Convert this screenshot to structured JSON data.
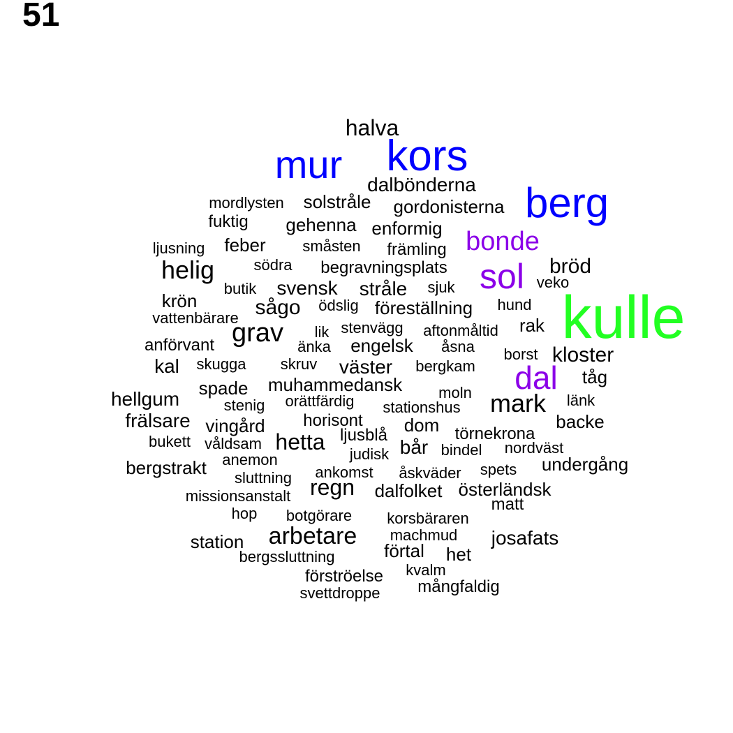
{
  "page_number": "51",
  "colors": {
    "default": "#000000",
    "blue": "#0000ff",
    "purple": "#8b00e8",
    "green": "#22ff22"
  },
  "words": [
    {
      "text": "halva",
      "color": "default"
    },
    {
      "text": "mur",
      "color": "blue"
    },
    {
      "text": "kors",
      "color": "blue"
    },
    {
      "text": "dalbönderna",
      "color": "default"
    },
    {
      "text": "berg",
      "color": "blue"
    },
    {
      "text": "mordlysten",
      "color": "default"
    },
    {
      "text": "solstråle",
      "color": "default"
    },
    {
      "text": "gordonisterna",
      "color": "default"
    },
    {
      "text": "fuktig",
      "color": "default"
    },
    {
      "text": "gehenna",
      "color": "default"
    },
    {
      "text": "enformig",
      "color": "default"
    },
    {
      "text": "bonde",
      "color": "purple"
    },
    {
      "text": "ljusning",
      "color": "default"
    },
    {
      "text": "feber",
      "color": "default"
    },
    {
      "text": "småsten",
      "color": "default"
    },
    {
      "text": "främling",
      "color": "default"
    },
    {
      "text": "helig",
      "color": "default"
    },
    {
      "text": "södra",
      "color": "default"
    },
    {
      "text": "begravningsplats",
      "color": "default"
    },
    {
      "text": "sol",
      "color": "purple"
    },
    {
      "text": "bröd",
      "color": "default"
    },
    {
      "text": "butik",
      "color": "default"
    },
    {
      "text": "svensk",
      "color": "default"
    },
    {
      "text": "stråle",
      "color": "default"
    },
    {
      "text": "sjuk",
      "color": "default"
    },
    {
      "text": "veko",
      "color": "default"
    },
    {
      "text": "krön",
      "color": "default"
    },
    {
      "text": "sågo",
      "color": "default"
    },
    {
      "text": "ödslig",
      "color": "default"
    },
    {
      "text": "föreställning",
      "color": "default"
    },
    {
      "text": "hund",
      "color": "default"
    },
    {
      "text": "kulle",
      "color": "green"
    },
    {
      "text": "vattenbärare",
      "color": "default"
    },
    {
      "text": "grav",
      "color": "default"
    },
    {
      "text": "lik",
      "color": "default"
    },
    {
      "text": "stenvägg",
      "color": "default"
    },
    {
      "text": "aftonmåltid",
      "color": "default"
    },
    {
      "text": "rak",
      "color": "default"
    },
    {
      "text": "anförvant",
      "color": "default"
    },
    {
      "text": "änka",
      "color": "default"
    },
    {
      "text": "engelsk",
      "color": "default"
    },
    {
      "text": "åsna",
      "color": "default"
    },
    {
      "text": "borst",
      "color": "default"
    },
    {
      "text": "kloster",
      "color": "default"
    },
    {
      "text": "kal",
      "color": "default"
    },
    {
      "text": "skugga",
      "color": "default"
    },
    {
      "text": "skruv",
      "color": "default"
    },
    {
      "text": "väster",
      "color": "default"
    },
    {
      "text": "bergkam",
      "color": "default"
    },
    {
      "text": "dal",
      "color": "purple"
    },
    {
      "text": "tåg",
      "color": "default"
    },
    {
      "text": "spade",
      "color": "default"
    },
    {
      "text": "muhammedansk",
      "color": "default"
    },
    {
      "text": "hellgum",
      "color": "default"
    },
    {
      "text": "moln",
      "color": "default"
    },
    {
      "text": "mark",
      "color": "default"
    },
    {
      "text": "länk",
      "color": "default"
    },
    {
      "text": "stenig",
      "color": "default"
    },
    {
      "text": "orättfärdig",
      "color": "default"
    },
    {
      "text": "stationshus",
      "color": "default"
    },
    {
      "text": "frälsare",
      "color": "default"
    },
    {
      "text": "horisont",
      "color": "default"
    },
    {
      "text": "backe",
      "color": "default"
    },
    {
      "text": "vingård",
      "color": "default"
    },
    {
      "text": "dom",
      "color": "default"
    },
    {
      "text": "törnekrona",
      "color": "default"
    },
    {
      "text": "bukett",
      "color": "default"
    },
    {
      "text": "våldsam",
      "color": "default"
    },
    {
      "text": "hetta",
      "color": "default"
    },
    {
      "text": "ljusblå",
      "color": "default"
    },
    {
      "text": "bår",
      "color": "default"
    },
    {
      "text": "bindel",
      "color": "default"
    },
    {
      "text": "nordväst",
      "color": "default"
    },
    {
      "text": "judisk",
      "color": "default"
    },
    {
      "text": "anemon",
      "color": "default"
    },
    {
      "text": "undergång",
      "color": "default"
    },
    {
      "text": "bergstrakt",
      "color": "default"
    },
    {
      "text": "ankomst",
      "color": "default"
    },
    {
      "text": "åskväder",
      "color": "default"
    },
    {
      "text": "spets",
      "color": "default"
    },
    {
      "text": "sluttning",
      "color": "default"
    },
    {
      "text": "regn",
      "color": "default"
    },
    {
      "text": "dalfolket",
      "color": "default"
    },
    {
      "text": "österländsk",
      "color": "default"
    },
    {
      "text": "missionsanstalt",
      "color": "default"
    },
    {
      "text": "matt",
      "color": "default"
    },
    {
      "text": "hop",
      "color": "default"
    },
    {
      "text": "botgörare",
      "color": "default"
    },
    {
      "text": "korsbäraren",
      "color": "default"
    },
    {
      "text": "arbetare",
      "color": "default"
    },
    {
      "text": "machmud",
      "color": "default"
    },
    {
      "text": "station",
      "color": "default"
    },
    {
      "text": "josafats",
      "color": "default"
    },
    {
      "text": "förtal",
      "color": "default"
    },
    {
      "text": "het",
      "color": "default"
    },
    {
      "text": "bergssluttning",
      "color": "default"
    },
    {
      "text": "förströelse",
      "color": "default"
    },
    {
      "text": "kvalm",
      "color": "default"
    },
    {
      "text": "mångfaldig",
      "color": "default"
    },
    {
      "text": "svettdroppe",
      "color": "default"
    }
  ]
}
